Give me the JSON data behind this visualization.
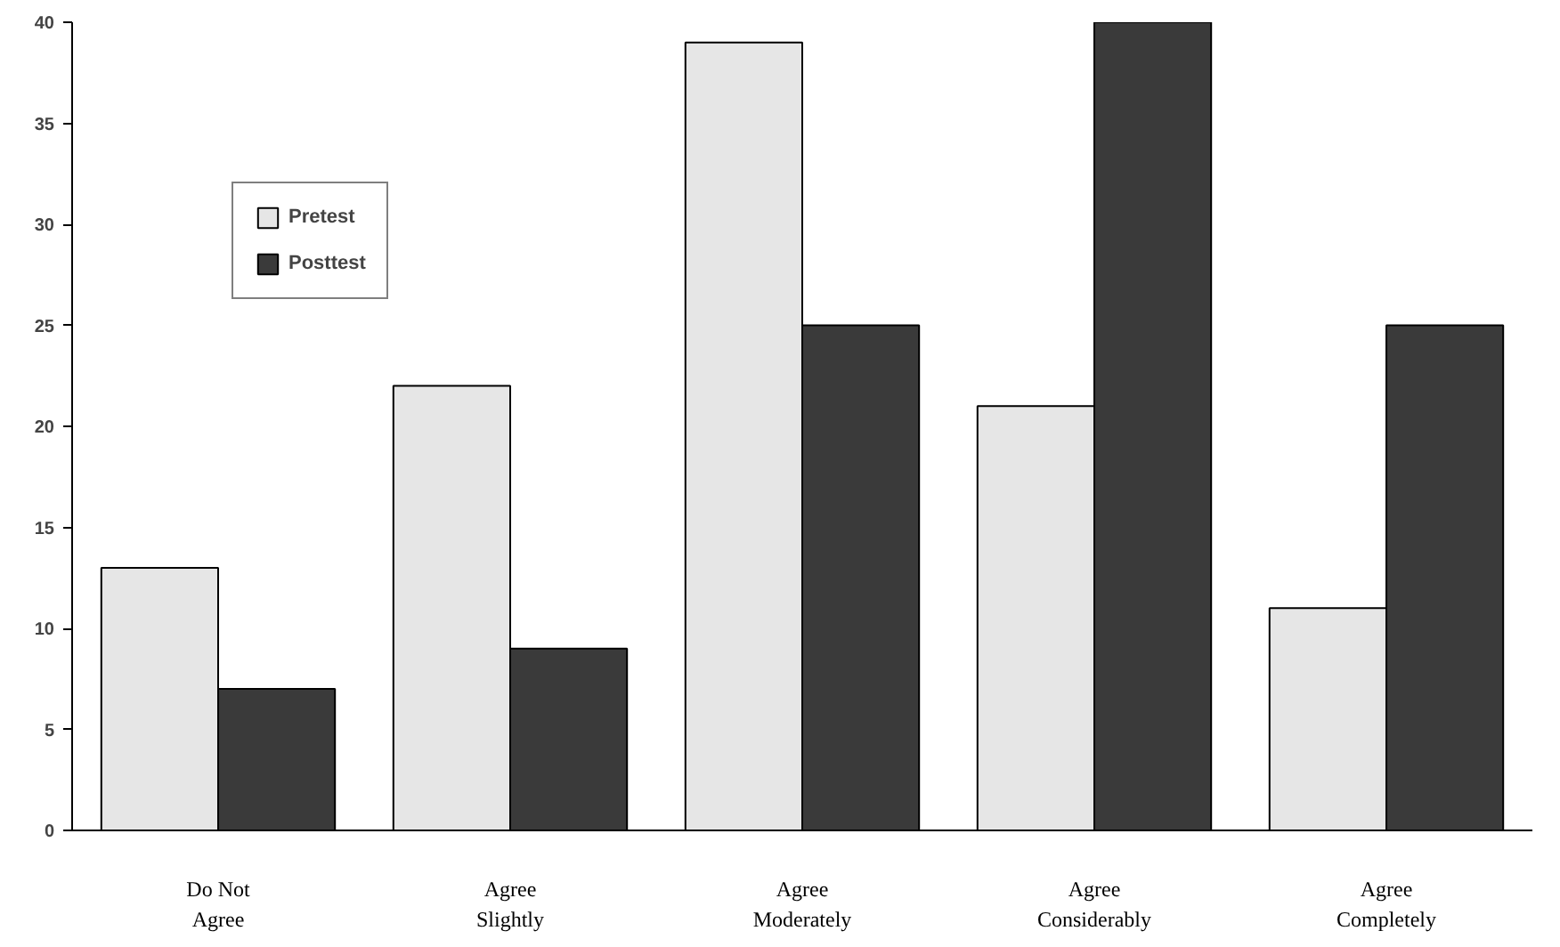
{
  "chart_data": {
    "type": "bar",
    "categories": [
      "Do Not\nAgree",
      "Agree\nSlightly",
      "Agree\nModerately",
      "Agree\nConsiderably",
      "Agree\nCompletely"
    ],
    "series": [
      {
        "name": "Pretest",
        "color": "#e6e6e6",
        "values": [
          13,
          22,
          39,
          21,
          11
        ]
      },
      {
        "name": "Posttest",
        "color": "#3a3a3a",
        "values": [
          7,
          9,
          25,
          40,
          25
        ]
      }
    ],
    "ylim": [
      0,
      40
    ],
    "yticks": [
      0,
      5,
      10,
      15,
      20,
      25,
      30,
      35,
      40
    ],
    "grid": false,
    "legend": "top left"
  }
}
